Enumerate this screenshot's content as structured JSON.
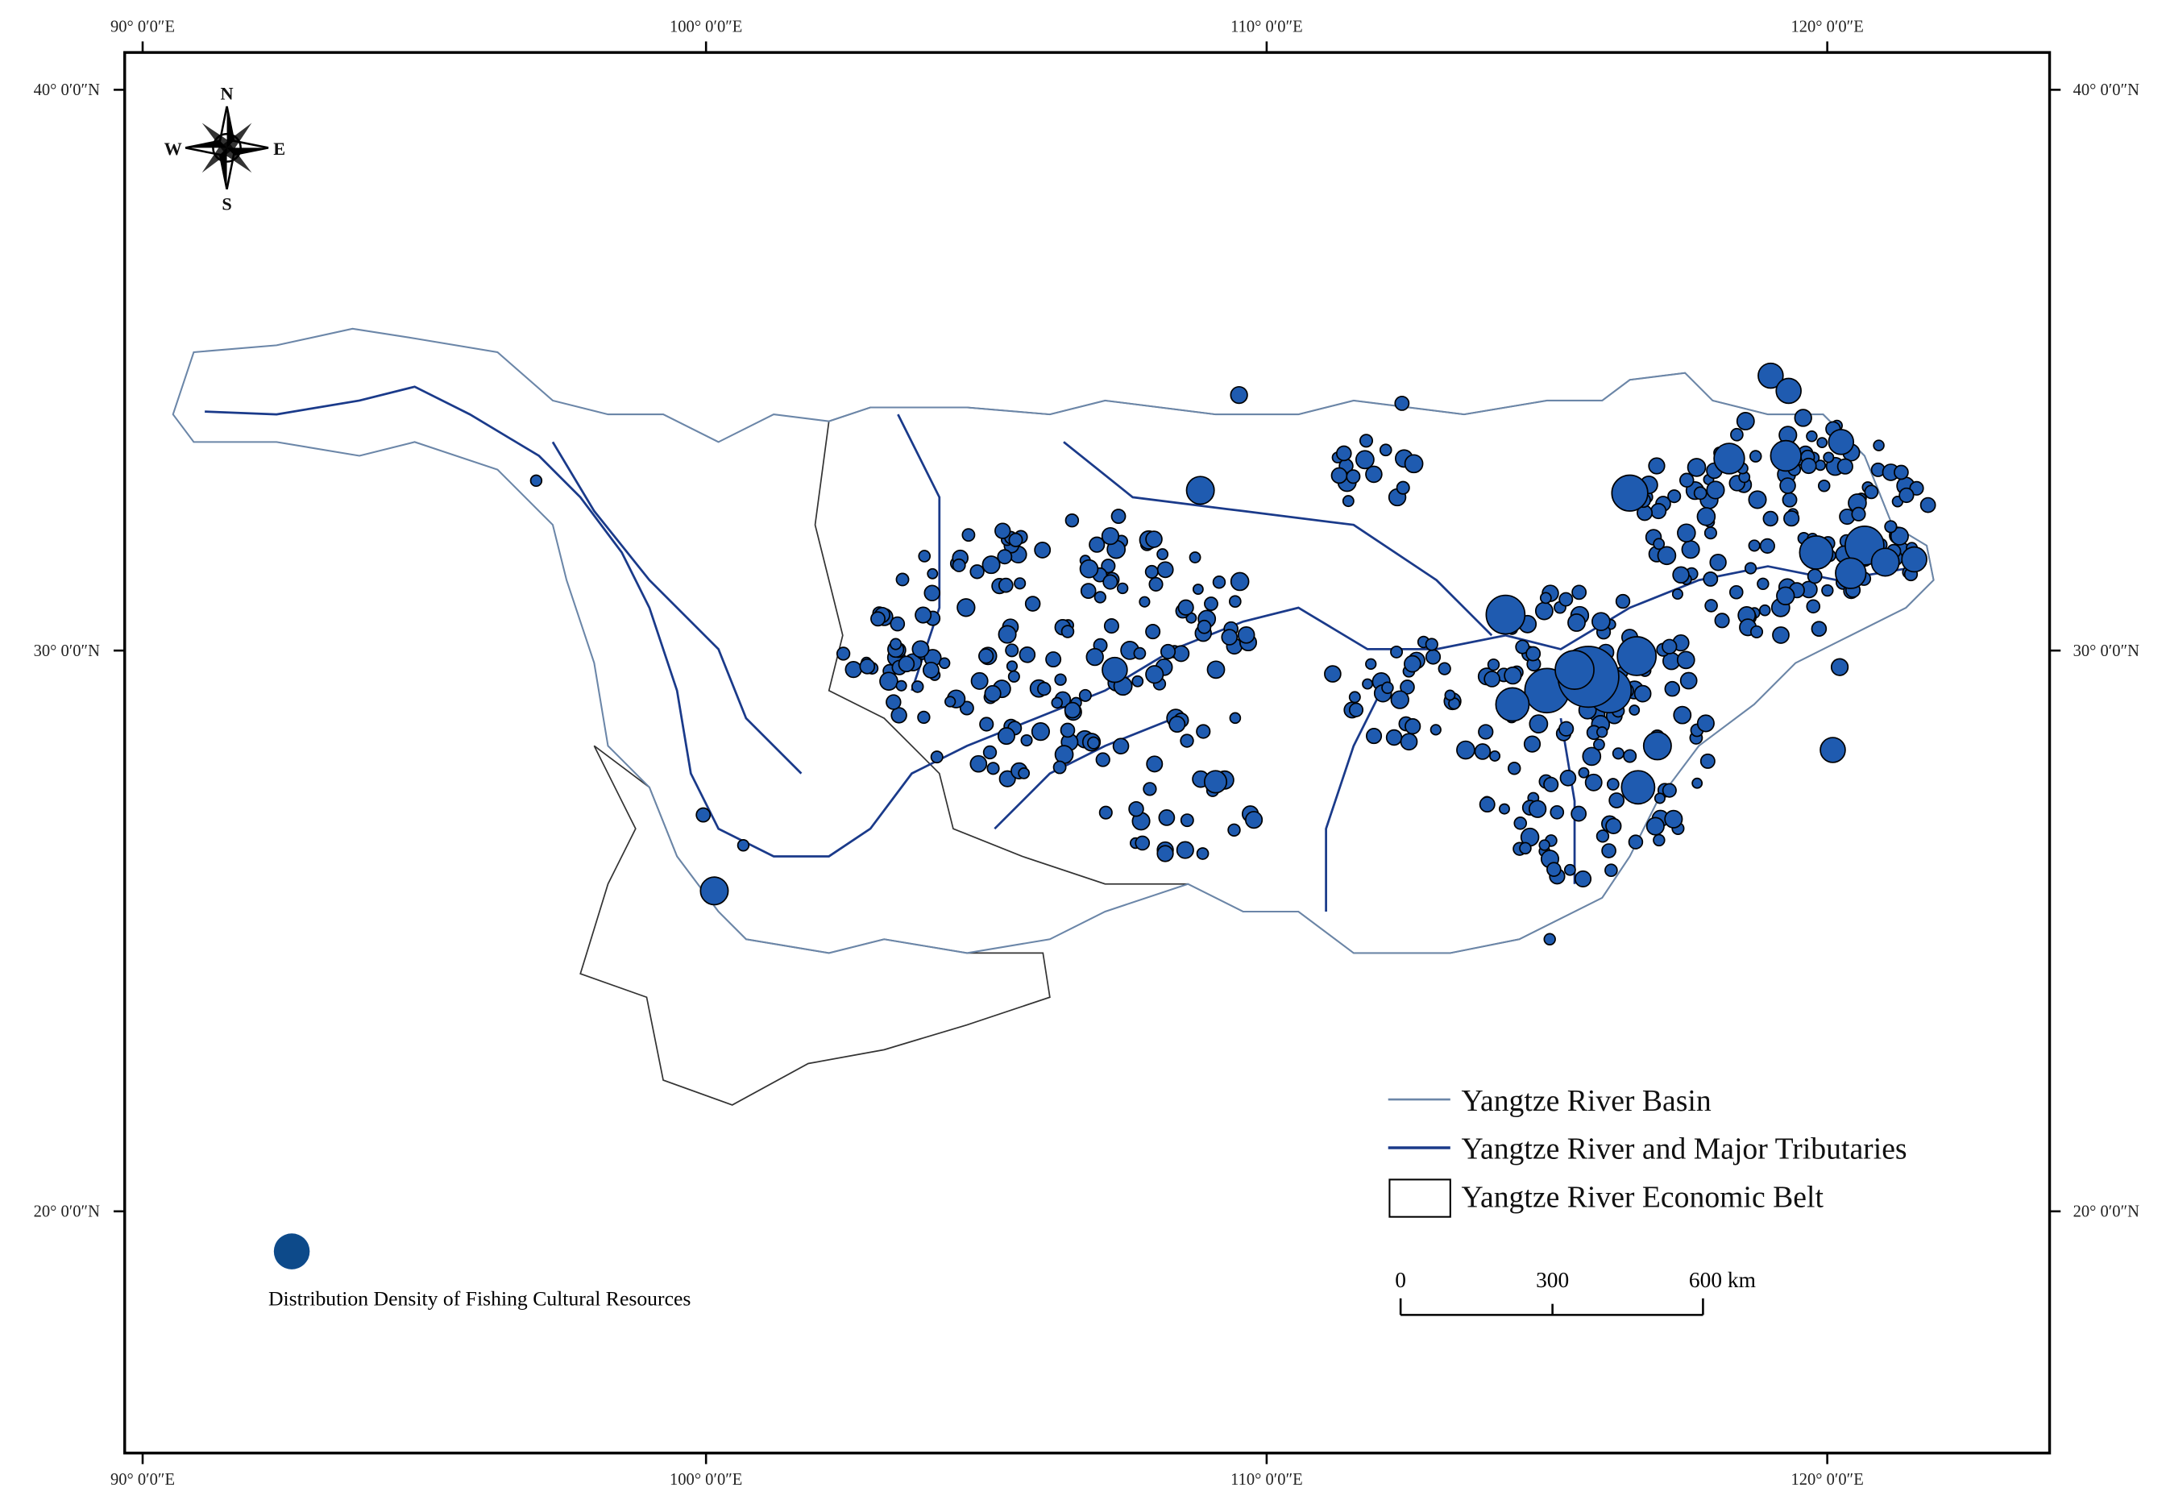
{
  "map": {
    "frame": {
      "top_labels": [
        "90° 0′0″E",
        "100° 0′0″E",
        "110° 0′0″E",
        "120° 0′0″E"
      ],
      "bottom_labels": [
        "90° 0′0″E",
        "100° 0′0″E",
        "110° 0′0″E",
        "120° 0′0″E"
      ],
      "left_labels": [
        "40° 0′0″N",
        "30° 0′0″N",
        "20° 0′0″N"
      ],
      "right_labels": [
        "40° 0′0″N",
        "30° 0′0″N",
        "20° 0′0″N"
      ]
    },
    "compass": {
      "north": "N",
      "south": "S",
      "west": "W",
      "east": "E"
    },
    "legend": {
      "items": [
        "Yangtze River Basin",
        "Yangtze River and Major Tributaries",
        "Yangtze River Economic Belt"
      ]
    },
    "scale_bar": {
      "labels": [
        "0",
        "300",
        "600 km"
      ]
    },
    "density_legend": {
      "label": "Distribution Density of Fishing Cultural Resources"
    }
  }
}
